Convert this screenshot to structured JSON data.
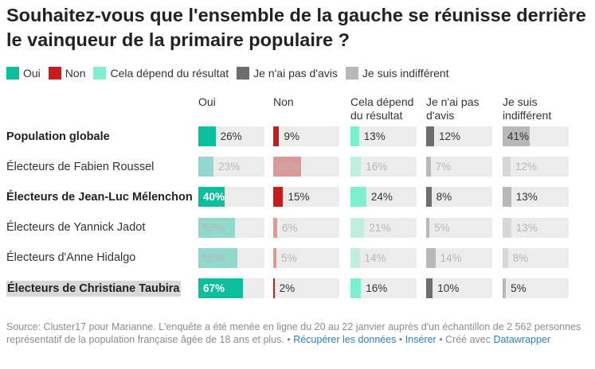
{
  "title": "Souhaitez-vous que l'ensemble de la gauche se réunisse derrière le vainqueur de la primaire populaire ?",
  "legend": [
    {
      "label": "Oui",
      "color": "#0bbf9d"
    },
    {
      "label": "Non",
      "color": "#c91c1c"
    },
    {
      "label": "Cela dépend du résultat",
      "color": "#7ef0cf"
    },
    {
      "label": "Je n'ai pas d'avis",
      "color": "#6e6e6e"
    },
    {
      "label": "Je suis indifférent",
      "color": "#b8b8b8"
    }
  ],
  "columns": [
    {
      "label": "Oui",
      "color": "#0bbf9d",
      "text": "light"
    },
    {
      "label": "Non",
      "color": "#c91c1c",
      "text": "light"
    },
    {
      "label": "Cela dépend du résultat",
      "color": "#7ef0cf",
      "text": "dark"
    },
    {
      "label": "Je n'ai pas d'avis",
      "color": "#6e6e6e",
      "text": "light"
    },
    {
      "label": "Je suis indifférent",
      "color": "#b8b8b8",
      "text": "dark"
    }
  ],
  "chart_data": {
    "type": "table",
    "title": "Souhaitez-vous que l'ensemble de la gauche se réunisse derrière le vainqueur de la primaire populaire ?",
    "scale_max": 100,
    "categories": [
      "Population globale",
      "Électeurs de Fabien Roussel",
      "Électeurs de Jean-Luc Mélenchon",
      "Électeurs de Yannick Jadot",
      "Électeurs d'Anne Hidalgo",
      "Électeurs de Christiane Taubira"
    ],
    "rows": [
      {
        "label": "Population globale",
        "bold": true,
        "faded": false,
        "highlight": false,
        "values": [
          26,
          9,
          13,
          12,
          41
        ],
        "labels": [
          "26%",
          "9%",
          "13%",
          "12%",
          "41%"
        ]
      },
      {
        "label": "Électeurs de Fabien Roussel",
        "bold": false,
        "faded": true,
        "highlight": false,
        "values": [
          23,
          42,
          16,
          7,
          12
        ],
        "labels": [
          "23%",
          "42%",
          "16%",
          "7%",
          "12%"
        ]
      },
      {
        "label": "Électeurs de Jean-Luc Mélenchon",
        "bold": true,
        "faded": false,
        "highlight": false,
        "values": [
          40,
          15,
          24,
          8,
          13
        ],
        "labels": [
          "40%",
          "15%",
          "24%",
          "8%",
          "13%"
        ]
      },
      {
        "label": "Électeurs de Yannick Jadot",
        "bold": false,
        "faded": true,
        "highlight": false,
        "values": [
          55,
          6,
          21,
          5,
          13
        ],
        "labels": [
          "55%",
          "6%",
          "21%",
          "5%",
          "13%"
        ]
      },
      {
        "label": "Électeurs d'Anne Hidalgo",
        "bold": false,
        "faded": true,
        "highlight": false,
        "values": [
          59,
          5,
          14,
          14,
          8
        ],
        "labels": [
          "59%",
          "5%",
          "14%",
          "14%",
          "8%"
        ]
      },
      {
        "label": "Électeurs de Christiane Taubira",
        "bold": true,
        "faded": false,
        "highlight": true,
        "values": [
          67,
          2,
          16,
          10,
          5
        ],
        "labels": [
          "67%",
          "2%",
          "16%",
          "10%",
          "5%"
        ]
      }
    ]
  },
  "footer": {
    "source": "Source: Cluster17 pour Marianne. L'enquête a été menée en ligne du 20 au 22 janvier auprès d'un échantillon de 2 562 personnes représentatif de la population française âgée de 18 ans et plus. •",
    "get_data": "Récupérer les données",
    "sep": "•",
    "embed": "Insérer",
    "created_with": "• Créé avec",
    "datawrapper": "Datawrapper"
  }
}
